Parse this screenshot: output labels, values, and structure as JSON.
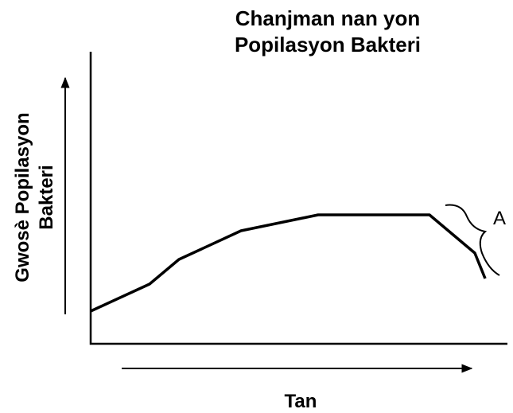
{
  "title": [
    "Chanjman nan yon",
    "Popilasyon Bakteri"
  ],
  "y_axis_label": [
    "Gwosè Popilasyon",
    "Bakteri"
  ],
  "x_axis_label": "Tan",
  "annotation": "A"
}
